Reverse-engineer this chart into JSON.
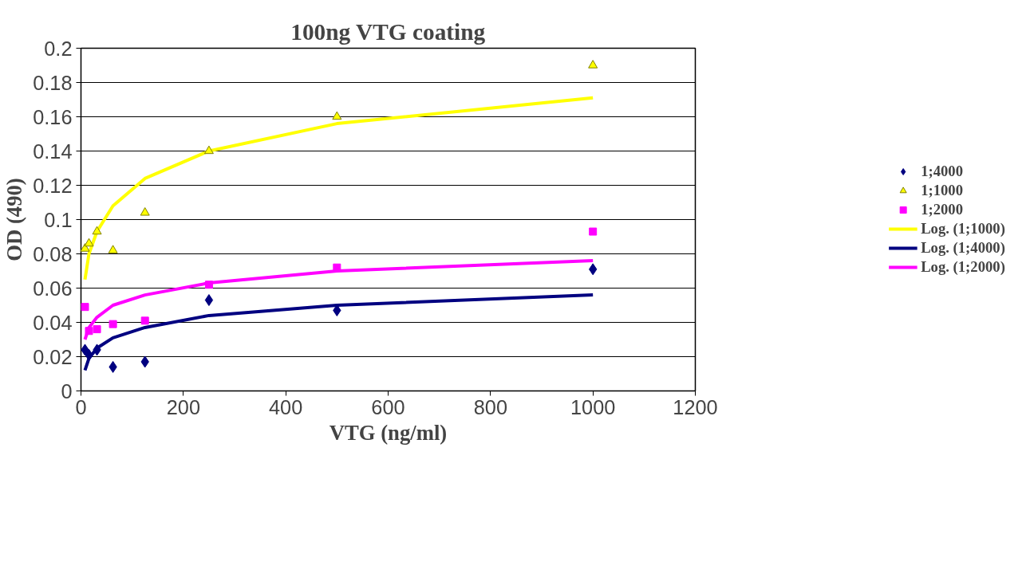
{
  "chart_data": {
    "type": "scatter",
    "title": "100ng VTG coating",
    "xlabel": "VTG (ng/ml)",
    "ylabel": "OD (490)",
    "x": [
      7.8,
      15.6,
      31.25,
      62.5,
      125,
      250,
      500,
      1000
    ],
    "series": [
      {
        "name": "1;4000",
        "color": "#000080",
        "marker": "diamond",
        "values": [
          0.024,
          0.021,
          0.024,
          0.014,
          0.017,
          0.053,
          0.047,
          0.071
        ]
      },
      {
        "name": "1;1000",
        "color": "#ffff00",
        "marker": "triangle",
        "values": [
          0.083,
          0.086,
          0.093,
          0.082,
          0.104,
          0.14,
          0.16,
          0.19
        ]
      },
      {
        "name": "1;2000",
        "color": "#ff00ff",
        "marker": "square",
        "values": [
          0.049,
          0.035,
          0.036,
          0.039,
          0.041,
          0.062,
          0.072,
          0.093
        ]
      },
      {
        "name": "Log. (1;1000)",
        "type": "line",
        "color": "#ffff00",
        "marker": "none",
        "values": [
          0.065,
          0.08,
          0.093,
          0.108,
          0.124,
          0.14,
          0.156,
          0.171
        ]
      },
      {
        "name": "Log. (1;4000)",
        "type": "line",
        "color": "#000080",
        "marker": "none",
        "values": [
          0.012,
          0.019,
          0.025,
          0.031,
          0.037,
          0.044,
          0.05,
          0.056
        ]
      },
      {
        "name": "Log. (1;2000)",
        "type": "line",
        "color": "#ff00ff",
        "marker": "none",
        "values": [
          0.03,
          0.037,
          0.043,
          0.05,
          0.056,
          0.063,
          0.07,
          0.076
        ]
      }
    ],
    "xlim": [
      0,
      1200
    ],
    "xticks": [
      0,
      200,
      400,
      600,
      800,
      1000,
      1200
    ],
    "ylim": [
      0,
      0.2
    ],
    "yticks": [
      0,
      0.02,
      0.04,
      0.06,
      0.08,
      0.1,
      0.12,
      0.14,
      0.16,
      0.18,
      0.2
    ],
    "grid": "y",
    "legend": "right",
    "line_style": "solid"
  }
}
